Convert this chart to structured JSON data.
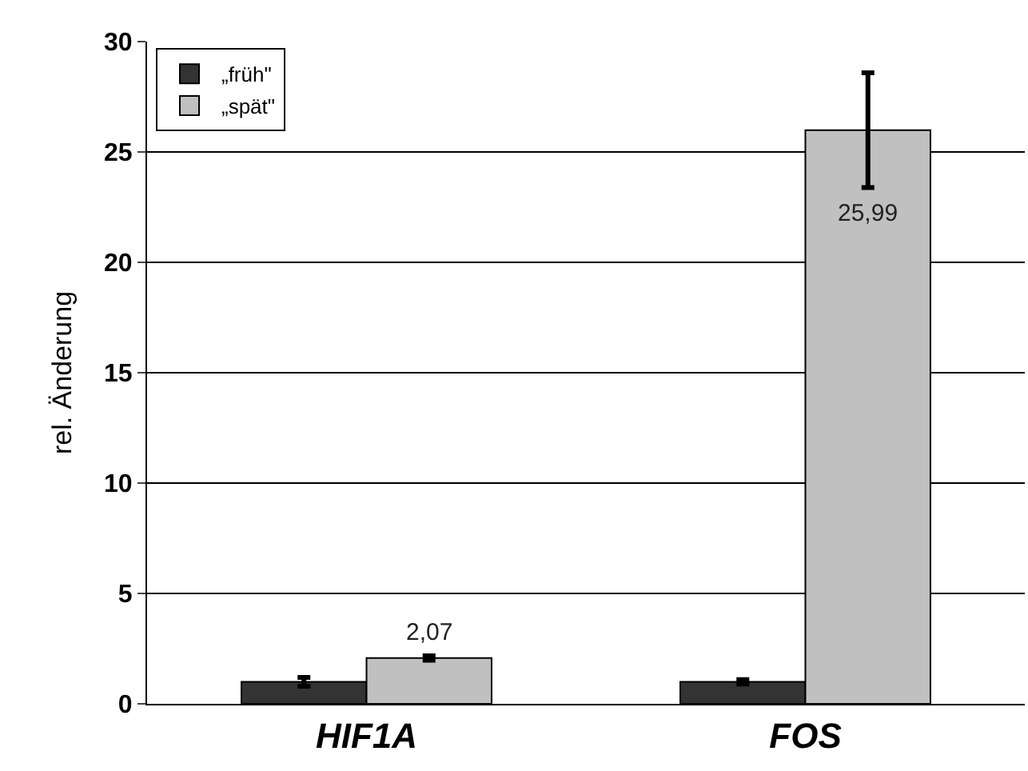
{
  "chart_data": {
    "type": "bar",
    "ylabel": "rel. Änderung",
    "categories": [
      "HIF1A",
      "FOS"
    ],
    "series": [
      {
        "name": "„früh\"",
        "color": "#333333",
        "values": [
          1.0,
          1.0
        ],
        "errors": [
          0.2,
          0.1
        ]
      },
      {
        "name": "„spät\"",
        "color": "#c0c0c0",
        "values": [
          2.07,
          25.99
        ],
        "errors": [
          0.1,
          2.6
        ],
        "value_labels": [
          "2,07",
          "25,99"
        ]
      }
    ],
    "ylim": [
      0,
      30
    ],
    "yticks": [
      0,
      5,
      10,
      15,
      20,
      25,
      30
    ],
    "grid": "y",
    "legend": "top left"
  }
}
